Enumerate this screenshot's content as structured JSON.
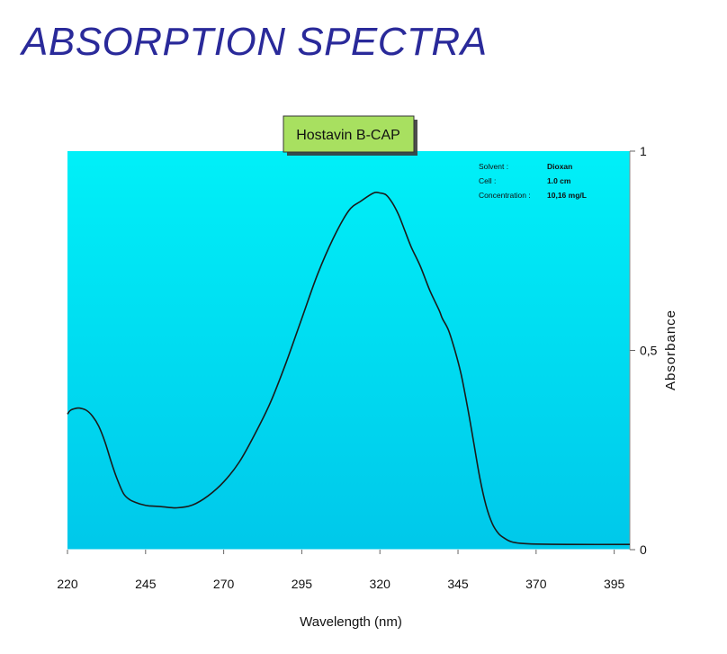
{
  "page": {
    "title": "ABSORPTION SPECTRA"
  },
  "colors": {
    "title": "#2a2a9a",
    "plot_bg_top": "#00f0f8",
    "plot_bg_bottom": "#00c8ea",
    "curve": "#1a1a1a",
    "badge_bg": "#a8e060"
  },
  "chart_data": {
    "type": "line",
    "title": "Hostavin B-CAP",
    "xlabel": "Wavelength (nm)",
    "ylabel": "Absorbance",
    "xlim": [
      220,
      400
    ],
    "ylim": [
      0,
      1
    ],
    "x_ticks": [
      220,
      245,
      270,
      295,
      320,
      345,
      370,
      395
    ],
    "x_tick_labels": [
      "220",
      "245",
      "270",
      "295",
      "320",
      "345",
      "370",
      "395"
    ],
    "y_ticks": [
      0,
      0.5,
      1
    ],
    "y_tick_labels": [
      "0",
      "0,5",
      "1"
    ],
    "y_axis_side": "right",
    "info": [
      {
        "label": "Solvent :",
        "value": "Dioxan"
      },
      {
        "label": "Cell :",
        "value": "1.0 cm"
      },
      {
        "label": "Concentration :",
        "value": "10,16 mg/L"
      }
    ],
    "series": [
      {
        "name": "Hostavin B-CAP",
        "x": [
          220,
          221,
          223,
          224,
          226,
          228,
          230,
          232,
          234,
          236,
          238,
          240,
          242,
          244,
          246,
          250,
          255,
          260,
          265,
          270,
          275,
          280,
          285,
          290,
          295,
          300,
          305,
          310,
          314,
          318,
          320,
          322,
          324,
          326,
          328,
          330,
          333,
          336,
          339,
          340,
          342,
          344,
          346,
          348,
          350,
          352,
          354,
          356,
          358,
          360,
          362,
          365,
          370,
          380,
          400
        ],
        "y": [
          0.34,
          0.35,
          0.355,
          0.355,
          0.35,
          0.335,
          0.31,
          0.27,
          0.22,
          0.175,
          0.14,
          0.125,
          0.118,
          0.113,
          0.11,
          0.108,
          0.105,
          0.112,
          0.135,
          0.17,
          0.22,
          0.29,
          0.37,
          0.47,
          0.58,
          0.69,
          0.78,
          0.85,
          0.875,
          0.895,
          0.895,
          0.89,
          0.87,
          0.84,
          0.8,
          0.76,
          0.71,
          0.65,
          0.6,
          0.58,
          0.55,
          0.5,
          0.44,
          0.36,
          0.27,
          0.18,
          0.11,
          0.065,
          0.04,
          0.028,
          0.02,
          0.016,
          0.014,
          0.013,
          0.013
        ]
      }
    ]
  }
}
